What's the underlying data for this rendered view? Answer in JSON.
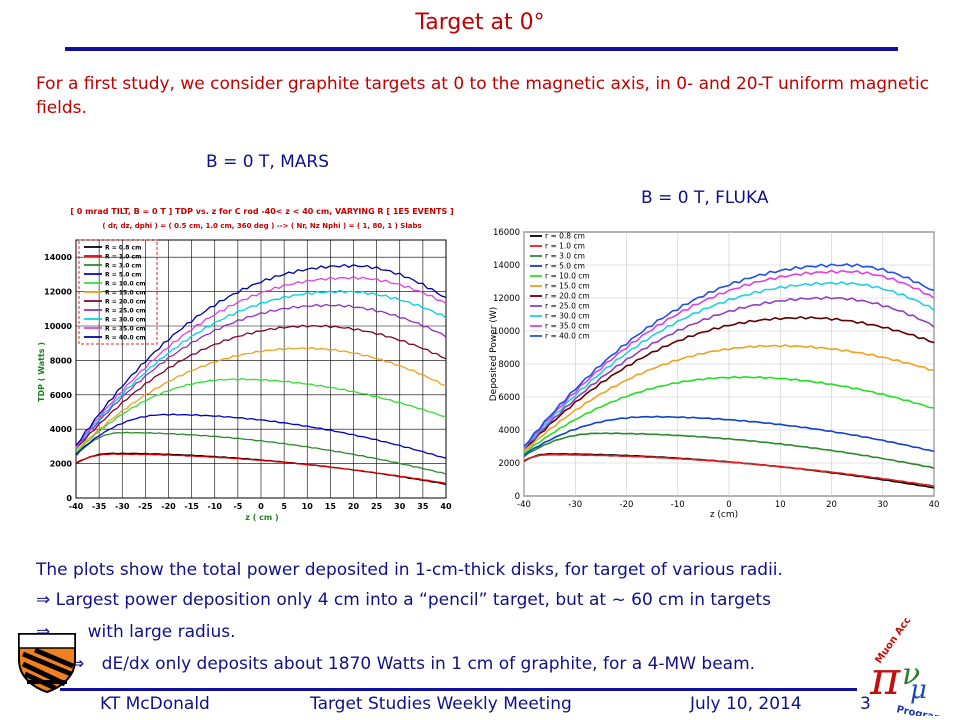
{
  "title": "Target at 0°",
  "intro": "For a first study, we consider graphite targets at 0 to the magnetic axis, in 0- and 20-T uniform magnetic fields.",
  "labels": {
    "mars": "B = 0 T, MARS",
    "fluka": "B = 0 T, FLUKA"
  },
  "body": {
    "line1": "The plots show the total power deposited in 1-cm-thick disks, for target of various radii.",
    "line2_arrow": "⇒",
    "line2": "Largest power deposition only 4 cm into a “pencil” target, but at ~ 60 cm in targets",
    "line3_arrow": "⇒",
    "line3": "with large radius.",
    "line4_arrow": "⇒",
    "line4": "dE/dx only deposits about 1870 Watts in 1 cm of graphite, for a 4-MW beam."
  },
  "footer": {
    "author": "KT McDonald",
    "meeting": "Target Studies Weekly Meeting",
    "date": "July 10, 2014",
    "page": "3"
  },
  "logo_text": {
    "top": "Muon Accelerator",
    "bottom": "Program"
  },
  "colors": {
    "accent_red": "#c00000",
    "navy": "#10108a"
  },
  "chart_data": [
    {
      "type": "line",
      "title": "[ 0 mrad TILT, B = 0 T ] TDP vs. z for C rod -40< z < 40 cm, VARYING R [ 1E5 EVENTS ]",
      "subtitle": "( dr, dz, dphi ) = ( 0.5 cm, 1.0 cm, 360 deg ) --> ( Nr, Nz Nphi ) = ( 1, 80, 1 ) Slabs",
      "xlabel": "z ( cm )",
      "ylabel": "TDP ( Watts )",
      "xlim": [
        -40,
        40
      ],
      "ylim": [
        0,
        15000
      ],
      "xticks": [
        -40,
        -35,
        -30,
        -25,
        -20,
        -15,
        -10,
        -5,
        0,
        5,
        10,
        15,
        20,
        25,
        30,
        35,
        40
      ],
      "yticks": [
        0,
        2000,
        4000,
        6000,
        8000,
        10000,
        12000,
        14000
      ],
      "grid": true,
      "legend": "top-left",
      "series": [
        {
          "name": "R = 0.8 cm",
          "color": "#000000",
          "start": 2000,
          "peak": 2600,
          "zpeak": -32,
          "end": 800
        },
        {
          "name": "R = 1.0 cm",
          "color": "#e00000",
          "start": 2050,
          "peak": 2550,
          "zpeak": -32,
          "end": 850
        },
        {
          "name": "R = 3.0 cm",
          "color": "#2a8a2a",
          "start": 2450,
          "peak": 3800,
          "zpeak": -30,
          "end": 1400
        },
        {
          "name": "R = 5.0 cm",
          "color": "#0000c0",
          "start": 2550,
          "peak": 4850,
          "zpeak": -20,
          "end": 2300
        },
        {
          "name": "R = 10.0 cm",
          "color": "#30e030",
          "start": 2650,
          "peak": 6900,
          "zpeak": -5,
          "end": 4700
        },
        {
          "name": "R = 15.0 cm",
          "color": "#f0a020",
          "start": 2750,
          "peak": 8700,
          "zpeak": 10,
          "end": 6500
        },
        {
          "name": "R = 20.0 cm",
          "color": "#800030",
          "start": 2850,
          "peak": 10000,
          "zpeak": 12,
          "end": 8100
        },
        {
          "name": "R = 25.0 cm",
          "color": "#9030c0",
          "start": 2900,
          "peak": 11200,
          "zpeak": 15,
          "end": 9400
        },
        {
          "name": "R = 30.0 cm",
          "color": "#00d0e0",
          "start": 2950,
          "peak": 12000,
          "zpeak": 18,
          "end": 10500
        },
        {
          "name": "R = 35.0 cm",
          "color": "#e040e0",
          "start": 3000,
          "peak": 12800,
          "zpeak": 20,
          "end": 11300
        },
        {
          "name": "R = 40.0 cm",
          "color": "#0000a0",
          "start": 3050,
          "peak": 13500,
          "zpeak": 20,
          "end": 11600
        }
      ]
    },
    {
      "type": "line",
      "title": "",
      "xlabel": "z (cm)",
      "ylabel": "Deposited Power (W)",
      "xlim": [
        -40,
        40
      ],
      "ylim": [
        0,
        16000
      ],
      "xticks": [
        -40,
        -30,
        -20,
        -10,
        0,
        10,
        20,
        30,
        40
      ],
      "yticks": [
        0,
        2000,
        4000,
        6000,
        8000,
        10000,
        12000,
        14000,
        16000
      ],
      "grid": true,
      "legend": "top-left",
      "series": [
        {
          "name": "r = 0.8 cm",
          "color": "#000000",
          "start": 2100,
          "peak": 2550,
          "zpeak": -35,
          "end": 500
        },
        {
          "name": "r = 1.0 cm",
          "color": "#e02020",
          "start": 2150,
          "peak": 2500,
          "zpeak": -35,
          "end": 600
        },
        {
          "name": "r = 3.0 cm",
          "color": "#2a8a2a",
          "start": 2400,
          "peak": 3800,
          "zpeak": -25,
          "end": 1700
        },
        {
          "name": "r = 5.0 cm",
          "color": "#1040d0",
          "start": 2500,
          "peak": 4800,
          "zpeak": -15,
          "end": 2700
        },
        {
          "name": "r = 10.0 cm",
          "color": "#20e020",
          "start": 2600,
          "peak": 7200,
          "zpeak": 3,
          "end": 5300
        },
        {
          "name": "r = 15.0 cm",
          "color": "#f0a020",
          "start": 2700,
          "peak": 9100,
          "zpeak": 10,
          "end": 7600
        },
        {
          "name": "r = 20.0 cm",
          "color": "#600000",
          "start": 2800,
          "peak": 10800,
          "zpeak": 15,
          "end": 9300
        },
        {
          "name": "r = 25.0 cm",
          "color": "#9040c0",
          "start": 2850,
          "peak": 12000,
          "zpeak": 20,
          "end": 10300
        },
        {
          "name": "r = 30.0 cm",
          "color": "#20d0e0",
          "start": 2900,
          "peak": 12900,
          "zpeak": 22,
          "end": 11300
        },
        {
          "name": "r = 35.0 cm",
          "color": "#e040e0",
          "start": 2950,
          "peak": 13600,
          "zpeak": 23,
          "end": 12000
        },
        {
          "name": "r = 40.0 cm",
          "color": "#2050e0",
          "start": 3000,
          "peak": 14000,
          "zpeak": 23,
          "end": 12400
        }
      ]
    }
  ]
}
